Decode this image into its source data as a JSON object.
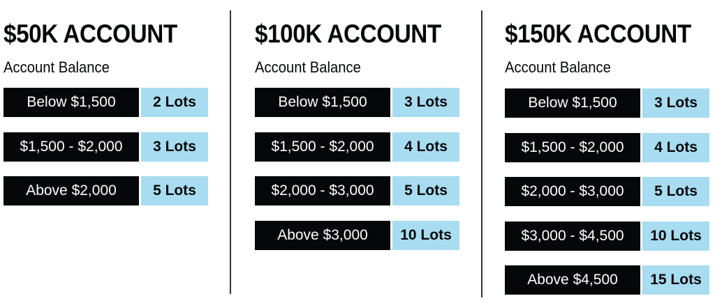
{
  "accounts": [
    {
      "title": "$50K ACCOUNT",
      "subtitle": "Account Balance",
      "rows": [
        {
          "range": "Below $1,500",
          "lots": "2 Lots"
        },
        {
          "range": "$1,500 - $2,000",
          "lots": "3 Lots"
        },
        {
          "range": "Above $2,000",
          "lots": "5 Lots"
        }
      ]
    },
    {
      "title": "$100K ACCOUNT",
      "subtitle": "Account Balance",
      "rows": [
        {
          "range": "Below $1,500",
          "lots": "3 Lots"
        },
        {
          "range": "$1,500 - $2,000",
          "lots": "4 Lots"
        },
        {
          "range": "$2,000 - $3,000",
          "lots": "5 Lots"
        },
        {
          "range": "Above $3,000",
          "lots": "10 Lots"
        }
      ]
    },
    {
      "title": "$150K ACCOUNT",
      "subtitle": "Account Balance",
      "rows": [
        {
          "range": "Below $1,500",
          "lots": "3 Lots"
        },
        {
          "range": "$1,500 - $2,000",
          "lots": "4 Lots"
        },
        {
          "range": "$2,000 - $3,000",
          "lots": "5 Lots"
        },
        {
          "range": "$3,000 - $4,500",
          "lots": "10 Lots"
        },
        {
          "range": "Above $4,500",
          "lots": "15 Lots"
        }
      ]
    }
  ],
  "colors": {
    "range_bg": "#050708",
    "lots_bg": "#a8dcf0"
  }
}
